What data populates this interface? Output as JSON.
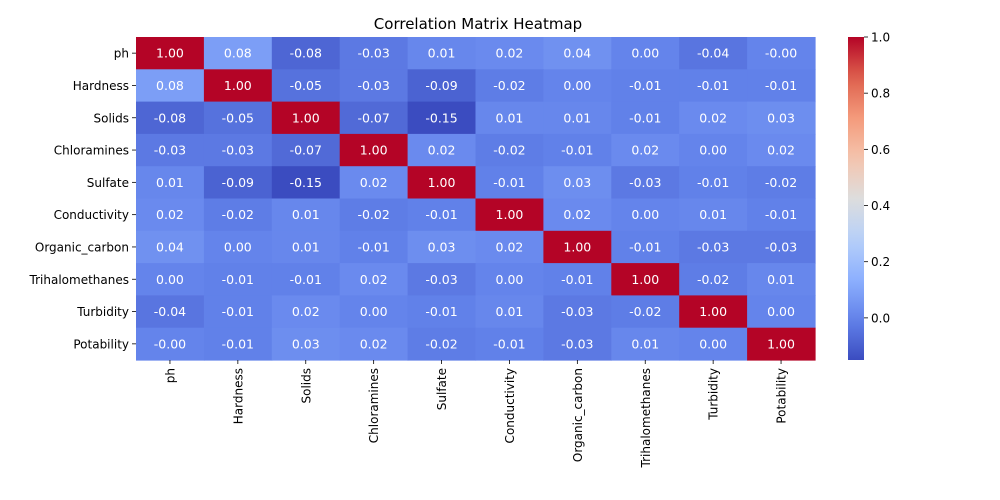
{
  "chart_data": {
    "type": "heatmap",
    "title": "Correlation Matrix Heatmap",
    "xlabel": "",
    "ylabel": "",
    "rows": [
      "ph",
      "Hardness",
      "Solids",
      "Chloramines",
      "Sulfate",
      "Conductivity",
      "Organic_carbon",
      "Trihalomethanes",
      "Turbidity",
      "Potability"
    ],
    "columns": [
      "ph",
      "Hardness",
      "Solids",
      "Chloramines",
      "Sulfate",
      "Conductivity",
      "Organic_carbon",
      "Trihalomethanes",
      "Turbidity",
      "Potability"
    ],
    "values": [
      [
        1.0,
        0.08,
        -0.08,
        -0.03,
        0.01,
        0.02,
        0.04,
        0.0,
        -0.04,
        -0.0
      ],
      [
        0.08,
        1.0,
        -0.05,
        -0.03,
        -0.09,
        -0.02,
        0.0,
        -0.01,
        -0.01,
        -0.01
      ],
      [
        -0.08,
        -0.05,
        1.0,
        -0.07,
        -0.15,
        0.01,
        0.01,
        -0.01,
        0.02,
        0.03
      ],
      [
        -0.03,
        -0.03,
        -0.07,
        1.0,
        0.02,
        -0.02,
        -0.01,
        0.02,
        0.0,
        0.02
      ],
      [
        0.01,
        -0.09,
        -0.15,
        0.02,
        1.0,
        -0.01,
        0.03,
        -0.03,
        -0.01,
        -0.02
      ],
      [
        0.02,
        -0.02,
        0.01,
        -0.02,
        -0.01,
        1.0,
        0.02,
        0.0,
        0.01,
        -0.01
      ],
      [
        0.04,
        0.0,
        0.01,
        -0.01,
        0.03,
        0.02,
        1.0,
        -0.01,
        -0.03,
        -0.03
      ],
      [
        0.0,
        -0.01,
        -0.01,
        0.02,
        -0.03,
        0.0,
        -0.01,
        1.0,
        -0.02,
        0.01
      ],
      [
        -0.04,
        -0.01,
        0.02,
        0.0,
        -0.01,
        0.01,
        -0.03,
        -0.02,
        1.0,
        0.0
      ],
      [
        -0.0,
        -0.01,
        0.03,
        0.02,
        -0.02,
        -0.01,
        -0.03,
        0.01,
        0.0,
        1.0
      ]
    ],
    "annotations_format": "2 decimals",
    "colormap": "coolwarm",
    "color_range": [
      -0.15,
      1.0
    ],
    "colorbar_ticks": [
      "0.0",
      "0.2",
      "0.4",
      "0.6",
      "0.8",
      "1.0"
    ],
    "grid": false,
    "legend": "colorbar-right"
  }
}
